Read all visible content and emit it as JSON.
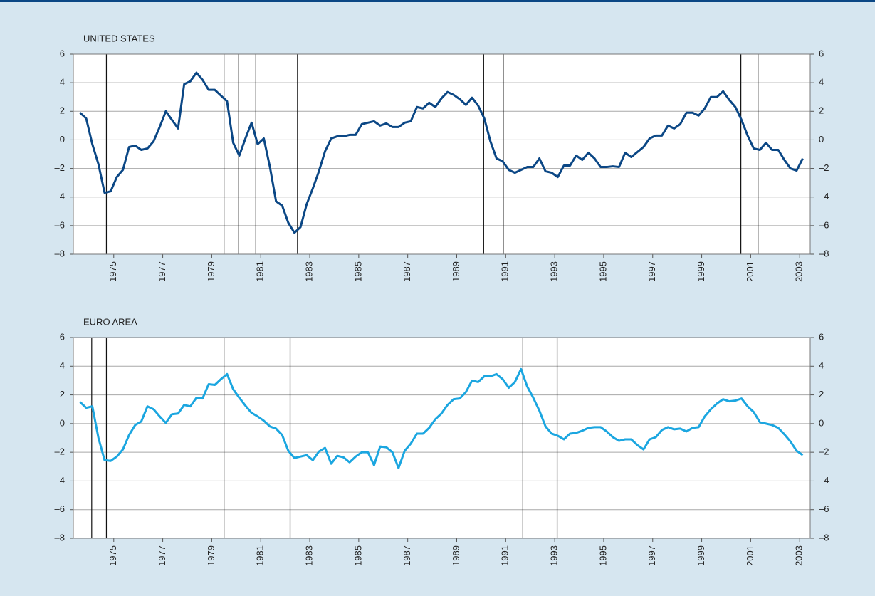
{
  "chart_data": [
    {
      "type": "line",
      "title": "UNITED STATES",
      "color": "#0b4785",
      "x": [
        1973.625,
        1973.875,
        1974.125,
        1974.375,
        1974.625,
        1974.875,
        1975.125,
        1975.375,
        1975.625,
        1975.875,
        1976.125,
        1976.375,
        1976.625,
        1976.875,
        1977.125,
        1977.375,
        1977.625,
        1977.875,
        1978.125,
        1978.375,
        1978.625,
        1978.875,
        1979.125,
        1979.375,
        1979.625,
        1979.875,
        1980.125,
        1980.375,
        1980.625,
        1980.875,
        1981.125,
        1981.375,
        1981.625,
        1981.875,
        1982.125,
        1982.375,
        1982.625,
        1982.875,
        1983.125,
        1983.375,
        1983.625,
        1983.875,
        1984.125,
        1984.375,
        1984.625,
        1984.875,
        1985.125,
        1985.375,
        1985.625,
        1985.875,
        1986.125,
        1986.375,
        1986.625,
        1986.875,
        1987.125,
        1987.375,
        1987.625,
        1987.875,
        1988.125,
        1988.375,
        1988.625,
        1988.875,
        1989.125,
        1989.375,
        1989.625,
        1989.875,
        1990.125,
        1990.375,
        1990.625,
        1990.875,
        1991.125,
        1991.375,
        1991.625,
        1991.875,
        1992.125,
        1992.375,
        1992.625,
        1992.875,
        1993.125,
        1993.375,
        1993.625,
        1993.875,
        1994.125,
        1994.375,
        1994.625,
        1994.875,
        1995.125,
        1995.375,
        1995.625,
        1995.875,
        1996.125,
        1996.375,
        1996.625,
        1996.875,
        1997.125,
        1997.375,
        1997.625,
        1997.875,
        1998.125,
        1998.375,
        1998.625,
        1998.875,
        1999.125,
        1999.375,
        1999.625,
        1999.875,
        2000.125,
        2000.375,
        2000.625,
        2000.875,
        2001.125,
        2001.375,
        2001.625,
        2001.875,
        2002.125,
        2002.375,
        2002.625,
        2002.875,
        2003.125
      ],
      "values": [
        1.9,
        1.5,
        -0.3,
        -1.7,
        -3.7,
        -3.6,
        -2.6,
        -2.1,
        -0.5,
        -0.4,
        -0.7,
        -0.6,
        -0.1,
        0.9,
        2.0,
        1.4,
        0.8,
        3.9,
        4.1,
        4.7,
        4.2,
        3.5,
        3.5,
        3.1,
        2.7,
        -0.2,
        -1.1,
        0.1,
        1.2,
        -0.3,
        0.1,
        -1.9,
        -4.3,
        -4.6,
        -5.8,
        -6.5,
        -6.1,
        -4.5,
        -3.4,
        -2.2,
        -0.8,
        0.1,
        0.25,
        0.25,
        0.35,
        0.35,
        1.1,
        1.2,
        1.3,
        1.0,
        1.15,
        0.9,
        0.9,
        1.2,
        1.3,
        2.3,
        2.2,
        2.6,
        2.3,
        2.9,
        3.35,
        3.15,
        2.85,
        2.45,
        2.95,
        2.4,
        1.5,
        -0.1,
        -1.3,
        -1.5,
        -2.1,
        -2.3,
        -2.1,
        -1.9,
        -1.9,
        -1.3,
        -2.2,
        -2.3,
        -2.6,
        -1.8,
        -1.8,
        -1.1,
        -1.4,
        -0.9,
        -1.3,
        -1.9,
        -1.9,
        -1.85,
        -1.9,
        -0.9,
        -1.2,
        -0.85,
        -0.5,
        0.1,
        0.3,
        0.3,
        1.0,
        0.8,
        1.1,
        1.9,
        1.9,
        1.7,
        2.2,
        3.0,
        3.0,
        3.4,
        2.8,
        2.3,
        1.4,
        0.3,
        -0.6,
        -0.7,
        -0.2,
        -0.7,
        -0.7,
        -1.4,
        -2.0,
        -2.15,
        -1.3
      ],
      "vertical_lines": [
        1974.7,
        1979.5,
        1980.1,
        1980.8,
        1982.5,
        1990.1,
        1990.9,
        2000.6,
        2001.3
      ],
      "xlim": [
        1973.35,
        2003.43
      ],
      "xticks": [
        1975,
        1977,
        1979,
        1981,
        1983,
        1985,
        1987,
        1989,
        1991,
        1993,
        1995,
        1997,
        1999,
        2001,
        2003
      ],
      "ylim": [
        -8,
        6
      ],
      "yticks": [
        {
          "value": -8,
          "label": "–8"
        },
        {
          "value": -6,
          "label": "–6"
        },
        {
          "value": -4,
          "label": "–4"
        },
        {
          "value": -2,
          "label": "–2"
        },
        0,
        2,
        4,
        6
      ],
      "y2lim": [
        -8,
        6
      ],
      "y2ticks": [
        {
          "value": -8,
          "label": "–8"
        },
        {
          "value": -6,
          "label": "–6"
        },
        {
          "value": -4,
          "label": "–4"
        },
        {
          "value": -2,
          "label": "–2"
        },
        0,
        2,
        4,
        6
      ],
      "grid": true
    },
    {
      "type": "line",
      "title": "EURO AREA",
      "color": "#1ba6e0",
      "x": [
        1973.625,
        1973.875,
        1974.125,
        1974.375,
        1974.625,
        1974.875,
        1975.125,
        1975.375,
        1975.625,
        1975.875,
        1976.125,
        1976.375,
        1976.625,
        1976.875,
        1977.125,
        1977.375,
        1977.625,
        1977.875,
        1978.125,
        1978.375,
        1978.625,
        1978.875,
        1979.125,
        1979.375,
        1979.625,
        1979.875,
        1980.125,
        1980.375,
        1980.625,
        1980.875,
        1981.125,
        1981.375,
        1981.625,
        1981.875,
        1982.125,
        1982.375,
        1982.625,
        1982.875,
        1983.125,
        1983.375,
        1983.625,
        1983.875,
        1984.125,
        1984.375,
        1984.625,
        1984.875,
        1985.125,
        1985.375,
        1985.625,
        1985.875,
        1986.125,
        1986.375,
        1986.625,
        1986.875,
        1987.125,
        1987.375,
        1987.625,
        1987.875,
        1988.125,
        1988.375,
        1988.625,
        1988.875,
        1989.125,
        1989.375,
        1989.625,
        1989.875,
        1990.125,
        1990.375,
        1990.625,
        1990.875,
        1991.125,
        1991.375,
        1991.625,
        1991.875,
        1992.125,
        1992.375,
        1992.625,
        1992.875,
        1993.125,
        1993.375,
        1993.625,
        1993.875,
        1994.125,
        1994.375,
        1994.625,
        1994.875,
        1995.125,
        1995.375,
        1995.625,
        1995.875,
        1996.125,
        1996.375,
        1996.625,
        1996.875,
        1997.125,
        1997.375,
        1997.625,
        1997.875,
        1998.125,
        1998.375,
        1998.625,
        1998.875,
        1999.125,
        1999.375,
        1999.625,
        1999.875,
        2000.125,
        2000.375,
        2000.625,
        2000.875,
        2001.125,
        2001.375,
        2001.625,
        2001.875,
        2002.125,
        2002.375,
        2002.625,
        2002.875,
        2003.125
      ],
      "values": [
        1.5,
        1.1,
        1.2,
        -1.0,
        -2.55,
        -2.6,
        -2.3,
        -1.8,
        -0.8,
        -0.1,
        0.15,
        1.2,
        1.0,
        0.5,
        0.05,
        0.65,
        0.7,
        1.3,
        1.2,
        1.8,
        1.75,
        2.75,
        2.7,
        3.1,
        3.45,
        2.4,
        1.8,
        1.25,
        0.75,
        0.5,
        0.2,
        -0.2,
        -0.35,
        -0.8,
        -1.9,
        -2.4,
        -2.3,
        -2.2,
        -2.55,
        -1.95,
        -1.7,
        -2.8,
        -2.25,
        -2.35,
        -2.7,
        -2.3,
        -2.0,
        -2.0,
        -2.9,
        -1.6,
        -1.65,
        -2.0,
        -3.1,
        -1.9,
        -1.4,
        -0.7,
        -0.7,
        -0.3,
        0.3,
        0.7,
        1.3,
        1.7,
        1.75,
        2.2,
        3.0,
        2.9,
        3.3,
        3.3,
        3.45,
        3.1,
        2.5,
        2.9,
        3.8,
        2.6,
        1.8,
        0.9,
        -0.2,
        -0.7,
        -0.85,
        -1.1,
        -0.7,
        -0.65,
        -0.5,
        -0.3,
        -0.25,
        -0.25,
        -0.55,
        -0.95,
        -1.2,
        -1.1,
        -1.1,
        -1.5,
        -1.8,
        -1.1,
        -0.95,
        -0.45,
        -0.25,
        -0.4,
        -0.35,
        -0.55,
        -0.3,
        -0.25,
        0.5,
        1.0,
        1.4,
        1.7,
        1.55,
        1.6,
        1.75,
        1.2,
        0.8,
        0.1,
        0.0,
        -0.1,
        -0.3,
        -0.75,
        -1.25,
        -1.9,
        -2.2
      ],
      "vertical_lines": [
        1974.1,
        1974.7,
        1979.5,
        1982.2,
        1991.7,
        1993.1
      ],
      "xlim": [
        1973.35,
        2003.43
      ],
      "xticks": [
        1975,
        1977,
        1979,
        1981,
        1983,
        1985,
        1987,
        1989,
        1991,
        1993,
        1995,
        1997,
        1999,
        2001,
        2003
      ],
      "ylim": [
        -8,
        6
      ],
      "yticks": [
        {
          "value": -8,
          "label": "–8"
        },
        {
          "value": -6,
          "label": "–6"
        },
        {
          "value": -4,
          "label": "–4"
        },
        {
          "value": -2,
          "label": "–2"
        },
        0,
        2,
        4,
        6
      ],
      "y2lim": [
        -8,
        6
      ],
      "y2ticks": [
        {
          "value": -8,
          "label": "–8"
        },
        {
          "value": -6,
          "label": "–6"
        },
        {
          "value": -4,
          "label": "–4"
        },
        {
          "value": -2,
          "label": "–2"
        },
        0,
        2,
        4,
        6
      ],
      "grid": true
    }
  ]
}
